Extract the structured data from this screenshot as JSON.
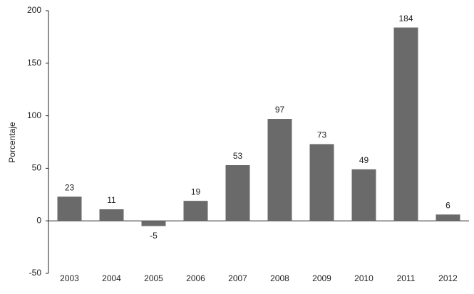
{
  "chart_data": {
    "type": "bar",
    "y_label": "Porcentaje",
    "categories": [
      "2003",
      "2004",
      "2005",
      "2006",
      "2007",
      "2008",
      "2009",
      "2010",
      "2011",
      "2012"
    ],
    "values": [
      23,
      11,
      -5,
      19,
      53,
      97,
      73,
      49,
      184,
      6
    ],
    "color": "#6b6a6b",
    "ylim": [
      -50,
      200
    ],
    "yticks": [
      -50,
      0,
      50,
      100,
      150,
      200
    ],
    "grid": false
  }
}
